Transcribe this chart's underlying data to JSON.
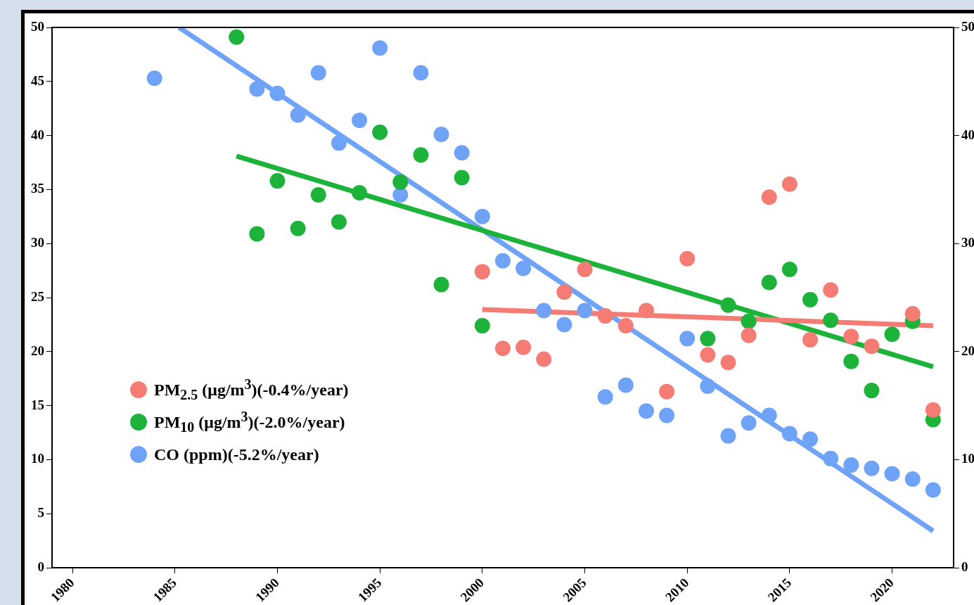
{
  "chart_data": {
    "type": "scatter",
    "xlim": [
      1979,
      2023
    ],
    "xticks": [
      1980,
      1985,
      1990,
      1995,
      2000,
      2005,
      2010,
      2015,
      2020
    ],
    "ylim": [
      0,
      50
    ],
    "yticks": [
      0,
      5,
      10,
      15,
      20,
      25,
      30,
      35,
      40,
      45,
      50
    ],
    "y2lim": [
      0,
      50
    ],
    "y2ticks": [
      0,
      10,
      20,
      30,
      40,
      50
    ],
    "grid": false,
    "legend": "bottom left",
    "series": [
      {
        "name": "PM$_{2.5}$ (μg/m$^{3}$)(-0.4%/year)",
        "marker": "circle",
        "color": "#f47c74",
        "x": [
          2000,
          2001,
          2002,
          2003,
          2004,
          2005,
          2006,
          2007,
          2008,
          2009,
          2010,
          2011,
          2012,
          2013,
          2014,
          2015,
          2016,
          2017,
          2018,
          2019,
          2021,
          2022
        ],
        "values": [
          27.4,
          20.3,
          20.4,
          19.3,
          25.5,
          27.6,
          23.3,
          22.4,
          23.8,
          16.3,
          28.6,
          19.7,
          19.0,
          21.5,
          34.3,
          35.5,
          21.1,
          25.7,
          21.4,
          20.5,
          23.5,
          14.6
        ]
      },
      {
        "name": "PM$_{10}$ (μg/m$^{3}$)(-2.0%/year)",
        "marker": "circle",
        "color": "#1db33a",
        "x": [
          1988,
          1989,
          1990,
          1991,
          1992,
          1993,
          1994,
          1995,
          1996,
          1997,
          1998,
          1999,
          2000,
          2011,
          2012,
          2013,
          2014,
          2015,
          2016,
          2017,
          2018,
          2019,
          2020,
          2021,
          2022
        ],
        "values": [
          49.1,
          30.9,
          35.8,
          31.4,
          34.5,
          32.0,
          34.7,
          40.3,
          35.7,
          38.2,
          26.2,
          36.1,
          22.4,
          21.2,
          24.3,
          22.8,
          26.4,
          27.6,
          24.8,
          22.9,
          19.1,
          16.4,
          21.6,
          22.8,
          13.7
        ]
      },
      {
        "name": "CO (ppm)(-5.2%/year)",
        "marker": "circle",
        "color": "#6fa3f7",
        "x": [
          1984,
          1989,
          1990,
          1991,
          1992,
          1993,
          1994,
          1995,
          1996,
          1997,
          1998,
          1999,
          2000,
          2001,
          2002,
          2003,
          2004,
          2005,
          2006,
          2007,
          2008,
          2009,
          2010,
          2011,
          2012,
          2013,
          2014,
          2015,
          2016,
          2017,
          2018,
          2019,
          2020,
          2021,
          2022
        ],
        "values": [
          45.3,
          44.3,
          43.9,
          41.9,
          45.8,
          39.3,
          41.4,
          48.1,
          34.5,
          45.8,
          40.1,
          38.4,
          32.5,
          28.4,
          27.7,
          23.8,
          22.5,
          23.8,
          15.8,
          16.9,
          14.5,
          14.1,
          21.2,
          16.8,
          12.2,
          13.4,
          14.1,
          12.4,
          11.9,
          10.1,
          9.5,
          9.2,
          8.7,
          8.2,
          7.2
        ]
      },
      {
        "type": "line",
        "marker": "none",
        "color": "#f47c74",
        "x": [
          2000,
          2022
        ],
        "values": [
          23.9,
          22.4
        ]
      },
      {
        "type": "line",
        "marker": "none",
        "color": "#1db33a",
        "x": [
          1988,
          2022
        ],
        "values": [
          38.1,
          18.6
        ]
      },
      {
        "type": "line",
        "marker": "none",
        "color": "#6fa3f7",
        "x": [
          1985.2,
          2022
        ],
        "values": [
          50,
          3.4
        ]
      }
    ]
  }
}
